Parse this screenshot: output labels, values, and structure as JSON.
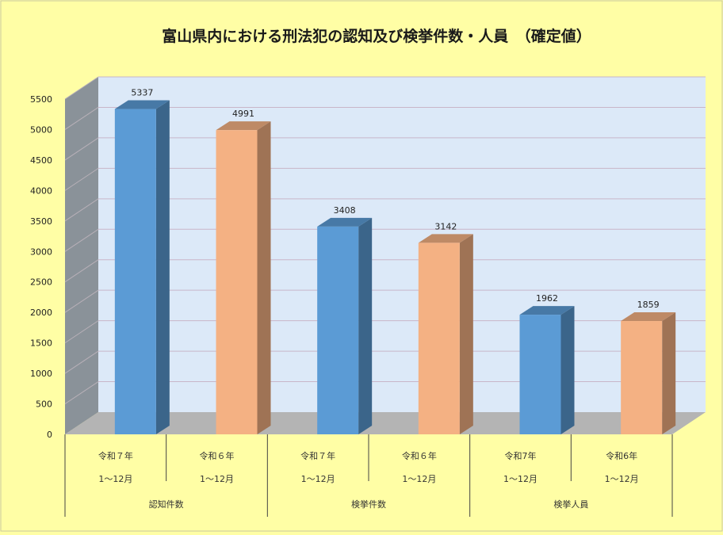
{
  "chart_data": {
    "type": "bar",
    "title": "富山県内における刑法犯の認知及び検挙件数・人員　（確定値）",
    "ylim": [
      0,
      5500
    ],
    "y_ticks": [
      0,
      500,
      1000,
      1500,
      2000,
      2500,
      3000,
      3500,
      4000,
      4500,
      5000,
      5500
    ],
    "bars": [
      {
        "period": "令和７年",
        "range": "1～12月",
        "value": 5337,
        "color": "#5b9bd5"
      },
      {
        "period": "令和６年",
        "range": "1～12月",
        "value": 4991,
        "color": "#f4b183"
      },
      {
        "period": "令和７年",
        "range": "1～12月",
        "value": 3408,
        "color": "#5b9bd5"
      },
      {
        "period": "令和６年",
        "range": "1～12月",
        "value": 3142,
        "color": "#f4b183"
      },
      {
        "period": "令和7年",
        "range": "1～12月",
        "value": 1962,
        "color": "#5b9bd5"
      },
      {
        "period": "令和6年",
        "range": "1～12月",
        "value": 1859,
        "color": "#f4b183"
      }
    ],
    "groups": [
      "認知件数",
      "検挙件数",
      "検挙人員"
    ],
    "grid": true,
    "legend": "none"
  }
}
